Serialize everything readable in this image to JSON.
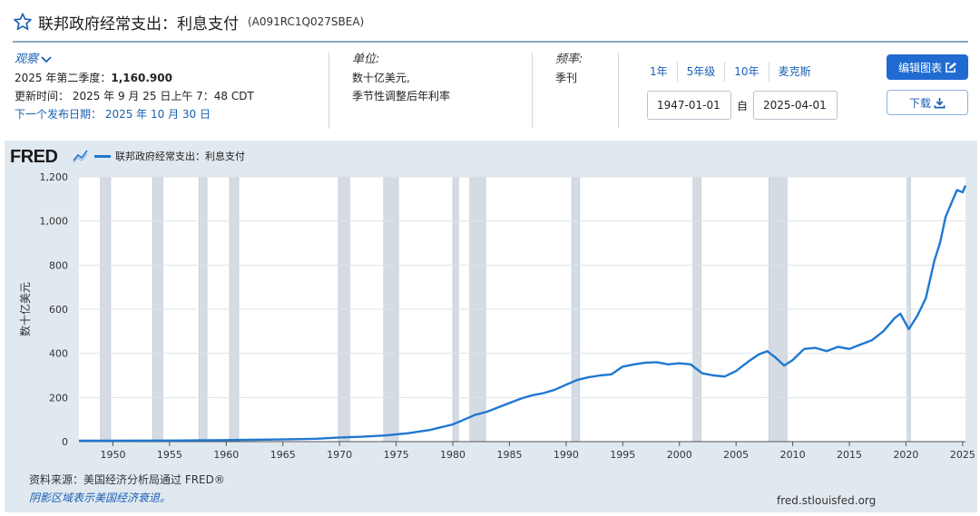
{
  "header": {
    "title": "联邦政府经常支出：利息支付",
    "series_id": "(A091RC1Q027SBEA)"
  },
  "observation": {
    "heading": "观察",
    "value_label": "2025 年第二季度：",
    "value": "1,160.900",
    "updated": "更新时间： 2025 年 9 月 25 日上午 7：48 CDT",
    "next_release": "下一个发布日期： 2025 年 10 月 30 日"
  },
  "units": {
    "heading": "单位:",
    "line1": "数十亿美元,",
    "line2": "季节性调整后年利率"
  },
  "frequency": {
    "heading": "频率:",
    "value": "季刊"
  },
  "ranges": [
    "1年",
    "5年级",
    "10年",
    "麦克斯"
  ],
  "dates": {
    "start": "1947-01-01",
    "sep": "自",
    "end": "2025-04-01"
  },
  "buttons": {
    "edit": "编辑图表",
    "download": "下载"
  },
  "chart_header": {
    "logo": "FRED",
    "legend": "联邦政府经常支出：利息支付"
  },
  "footer": {
    "source": "资料来源：美国经济分析局通过 FRED®",
    "recession_note": "阴影区域表示美国经济衰退。",
    "url": "fred.stlouisfed.org"
  },
  "colors": {
    "line": "#1f78d1",
    "recession": "#d5dbe2",
    "accent": "#1f6bd1"
  },
  "chart_data": {
    "type": "line",
    "ylabel": "数十亿美元",
    "xlabel": "",
    "ylim": [
      0,
      1200
    ],
    "xlim": [
      1947,
      2025.25
    ],
    "yticks": [
      0,
      200,
      400,
      600,
      800,
      1000,
      1200
    ],
    "ytick_labels": [
      "0",
      "200",
      "400",
      "600",
      "800",
      "1,000",
      "1,200"
    ],
    "xticks": [
      1950,
      1955,
      1960,
      1965,
      1970,
      1975,
      1980,
      1985,
      1990,
      1995,
      2000,
      2005,
      2010,
      2015,
      2020,
      2025
    ],
    "grid": true,
    "legend_position": "top-left",
    "recessions": [
      [
        1948.9,
        1949.8
      ],
      [
        1953.5,
        1954.4
      ],
      [
        1957.6,
        1958.3
      ],
      [
        1960.3,
        1961.1
      ],
      [
        1969.9,
        1970.9
      ],
      [
        1973.9,
        1975.2
      ],
      [
        1980.0,
        1980.5
      ],
      [
        1981.5,
        1982.9
      ],
      [
        1990.5,
        1991.2
      ],
      [
        2001.2,
        2001.9
      ],
      [
        2007.9,
        2009.5
      ],
      [
        2020.1,
        2020.4
      ]
    ],
    "series": [
      {
        "name": "联邦政府经常支出：利息支付",
        "x": [
          1947,
          1950,
          1955,
          1960,
          1965,
          1968,
          1970,
          1972,
          1974,
          1976,
          1978,
          1980,
          1981,
          1982,
          1983,
          1984,
          1985,
          1986,
          1987,
          1988,
          1989,
          1990,
          1991,
          1992,
          1993,
          1994,
          1995,
          1996,
          1997,
          1998,
          1999,
          2000,
          2001,
          2002,
          2003,
          2004,
          2005,
          2006,
          2007,
          2007.75,
          2008.5,
          2009.25,
          2010,
          2011,
          2012,
          2013,
          2014,
          2015,
          2016,
          2017,
          2018,
          2019,
          2019.5,
          2020.25,
          2021,
          2021.75,
          2022.5,
          2023,
          2023.5,
          2024,
          2024.5,
          2025,
          2025.25
        ],
        "y": [
          4,
          4.5,
          5,
          7,
          10,
          13,
          19,
          22,
          28,
          38,
          53,
          78,
          100,
          122,
          135,
          155,
          175,
          195,
          210,
          220,
          235,
          258,
          280,
          292,
          300,
          305,
          340,
          350,
          358,
          360,
          350,
          355,
          350,
          310,
          300,
          295,
          320,
          360,
          395,
          410,
          380,
          345,
          370,
          420,
          425,
          410,
          430,
          420,
          440,
          460,
          500,
          560,
          580,
          510,
          570,
          650,
          820,
          900,
          1020,
          1080,
          1140,
          1130,
          1161
        ]
      }
    ]
  }
}
